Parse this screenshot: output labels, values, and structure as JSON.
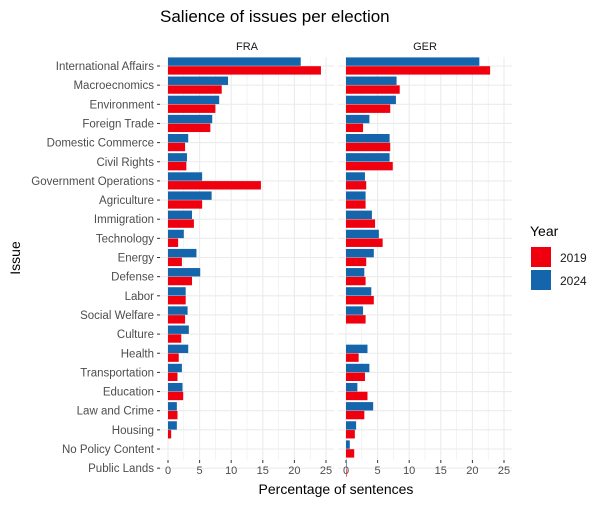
{
  "chart_data": {
    "type": "bar",
    "orientation": "horizontal",
    "title": "Salience of issues per election",
    "xlabel": "Percentage of sentences",
    "ylabel": "Issue",
    "xlim": [
      0,
      25
    ],
    "xticks": [
      "0",
      "5",
      "10",
      "15",
      "20",
      "25"
    ],
    "grid": true,
    "legend": {
      "title": "Year",
      "position": "right"
    },
    "categories": [
      "International Affairs",
      "Macroecnomics",
      "Environment",
      "Foreign Trade",
      "Domestic Commerce",
      "Civil Rights",
      "Government Operations",
      "Agriculture",
      "Immigration",
      "Technology",
      "Energy",
      "Defense",
      "Labor",
      "Social Welfare",
      "Culture",
      "Health",
      "Transportation",
      "Education",
      "Law and Crime",
      "Housing",
      "No Policy Content",
      "Public Lands"
    ],
    "panels": [
      {
        "name": "FRA",
        "series": [
          {
            "name": "2019",
            "color": "#f0000f",
            "values": [
              24.2,
              8.5,
              7.5,
              6.7,
              2.7,
              2.9,
              14.7,
              5.4,
              4.1,
              1.6,
              2.2,
              3.8,
              2.8,
              2.7,
              2.1,
              1.7,
              1.5,
              2.4,
              1.5,
              0.5,
              0,
              0
            ]
          },
          {
            "name": "2024",
            "color": "#1465ac",
            "values": [
              21.0,
              9.5,
              8.1,
              7.0,
              3.2,
              3.0,
              5.4,
              6.9,
              3.8,
              2.5,
              4.5,
              5.1,
              2.8,
              3.1,
              3.3,
              3.2,
              2.2,
              2.3,
              1.4,
              1.4,
              0,
              0
            ]
          }
        ]
      },
      {
        "name": "GER",
        "series": [
          {
            "name": "2019",
            "color": "#f0000f",
            "values": [
              22.8,
              8.5,
              7.0,
              2.7,
              7.0,
              7.4,
              3.2,
              3.1,
              4.6,
              5.8,
              3.2,
              3.1,
              4.4,
              3.1,
              0,
              2.0,
              3.0,
              3.4,
              2.9,
              1.4,
              1.3,
              0.1
            ]
          },
          {
            "name": "2024",
            "color": "#1465ac",
            "values": [
              21.1,
              8.0,
              7.9,
              3.7,
              6.9,
              6.9,
              3.0,
              3.1,
              4.1,
              5.2,
              4.4,
              2.9,
              4.0,
              2.7,
              0,
              3.4,
              3.7,
              1.8,
              4.3,
              1.6,
              0.6,
              0.1
            ]
          }
        ]
      }
    ]
  }
}
